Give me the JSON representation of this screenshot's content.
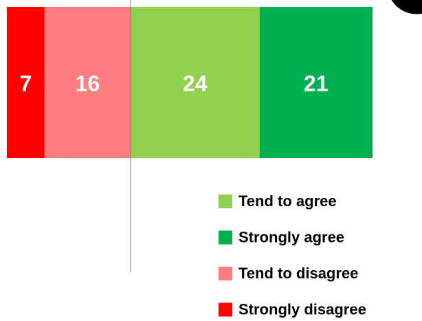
{
  "chart_data": {
    "type": "bar",
    "stacked": true,
    "diverging": true,
    "categories": [
      null
    ],
    "series": [
      {
        "name": "Tend to agree",
        "color": "#92d050",
        "direction": "right",
        "values": [
          24
        ]
      },
      {
        "name": "Strongly agree",
        "color": "#00b050",
        "direction": "right",
        "values": [
          21
        ]
      },
      {
        "name": "Tend to disagree",
        "color": "#ff7c80",
        "direction": "left",
        "values": [
          16
        ]
      },
      {
        "name": "Strongly disagree",
        "color": "#ff0000",
        "direction": "left",
        "values": [
          7
        ]
      }
    ]
  }
}
